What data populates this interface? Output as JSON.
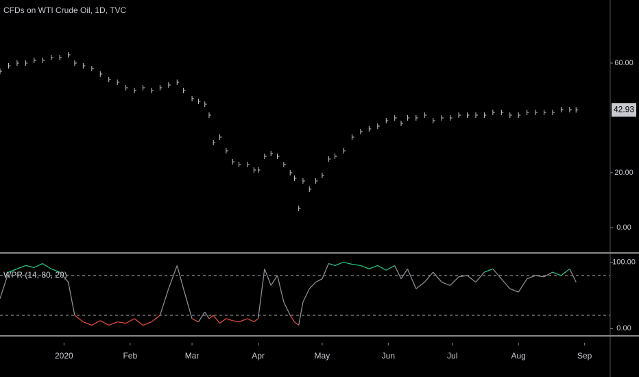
{
  "chart_data": [
    {
      "type": "ohlc",
      "title": "CFDs on WTI Crude Oil, 1D, TVC",
      "color": "#c8cad0",
      "x": [
        -30,
        -26,
        -22,
        -18,
        -14,
        -10,
        -6,
        -2,
        2,
        5,
        9,
        13,
        17,
        21,
        25,
        29,
        33,
        37,
        41,
        45,
        49,
        53,
        56,
        60,
        63,
        66,
        68,
        70,
        73,
        76,
        79,
        82,
        86,
        89,
        91,
        94,
        97,
        100,
        103,
        106,
        108,
        110,
        112,
        115,
        118,
        121,
        124,
        127,
        131,
        135,
        139,
        143,
        147,
        151,
        155,
        158,
        161,
        165,
        169,
        173,
        177,
        181,
        185,
        189,
        193,
        197,
        201,
        205,
        209,
        213,
        217,
        221,
        225,
        229,
        233,
        237,
        240
      ],
      "values": [
        57,
        59,
        60,
        60,
        61,
        61,
        62,
        62,
        63,
        60,
        59,
        58,
        56,
        54,
        53,
        51,
        50,
        51,
        50,
        51,
        52,
        53,
        50,
        47,
        46,
        45,
        41,
        31,
        33,
        28,
        24,
        23,
        23,
        21,
        21,
        26,
        27,
        26,
        23,
        20,
        18,
        7,
        17,
        14,
        17,
        19,
        25,
        26,
        28,
        33,
        35,
        36,
        37,
        39,
        40,
        38,
        40,
        40,
        41,
        39,
        40,
        40,
        41,
        41,
        41,
        41,
        42,
        42,
        41,
        41,
        42,
        42,
        42,
        42,
        43,
        43,
        42.93
      ],
      "last_label": "42.93",
      "xlim": [
        -30,
        256
      ],
      "xticks": [
        {
          "value": 0,
          "label": "2020"
        },
        {
          "value": 31,
          "label": "Feb"
        },
        {
          "value": 60,
          "label": "Mar"
        },
        {
          "value": 91,
          "label": "Apr"
        },
        {
          "value": 121,
          "label": "May"
        },
        {
          "value": 152,
          "label": "Jun"
        },
        {
          "value": 182,
          "label": "Jul"
        },
        {
          "value": 213,
          "label": "Aug"
        },
        {
          "value": 244,
          "label": "Sep"
        }
      ],
      "ylim": [
        -9,
        83
      ],
      "yticks": [
        {
          "value": 0,
          "label": "0.00"
        },
        {
          "value": 20,
          "label": "20.00"
        },
        {
          "value": 60,
          "label": "60.00"
        }
      ]
    },
    {
      "type": "wpr",
      "title": "WPR (14, 80, 20)",
      "x": [
        -30,
        -26,
        -22,
        -18,
        -14,
        -10,
        -6,
        -2,
        2,
        5,
        9,
        13,
        17,
        21,
        25,
        29,
        33,
        37,
        41,
        45,
        49,
        53,
        56,
        60,
        63,
        66,
        68,
        70,
        73,
        76,
        79,
        82,
        86,
        89,
        91,
        94,
        97,
        100,
        103,
        106,
        108,
        110,
        112,
        115,
        118,
        121,
        124,
        127,
        131,
        135,
        139,
        143,
        147,
        151,
        155,
        158,
        161,
        165,
        169,
        173,
        177,
        181,
        185,
        189,
        193,
        197,
        201,
        205,
        209,
        213,
        217,
        221,
        225,
        229,
        233,
        237,
        240
      ],
      "values": [
        45,
        85,
        90,
        95,
        92,
        98,
        90,
        85,
        70,
        20,
        10,
        5,
        12,
        5,
        10,
        8,
        15,
        5,
        10,
        20,
        60,
        95,
        60,
        15,
        10,
        25,
        15,
        20,
        8,
        15,
        12,
        10,
        15,
        10,
        15,
        90,
        65,
        80,
        40,
        20,
        10,
        5,
        40,
        60,
        70,
        75,
        98,
        95,
        100,
        97,
        95,
        90,
        95,
        88,
        95,
        75,
        90,
        60,
        70,
        85,
        70,
        65,
        78,
        80,
        70,
        85,
        90,
        75,
        60,
        55,
        75,
        80,
        78,
        85,
        80,
        90,
        70
      ],
      "upper": 80,
      "lower": 20,
      "color": "#8a8d93",
      "upper_color": "#26c281",
      "lower_color": "#e04a3f",
      "xlim": [
        -30,
        256
      ],
      "ylim": [
        -10,
        113
      ],
      "yticks": [
        {
          "value": 0,
          "label": "0.00"
        },
        {
          "value": 100,
          "label": "100.00"
        }
      ]
    }
  ]
}
